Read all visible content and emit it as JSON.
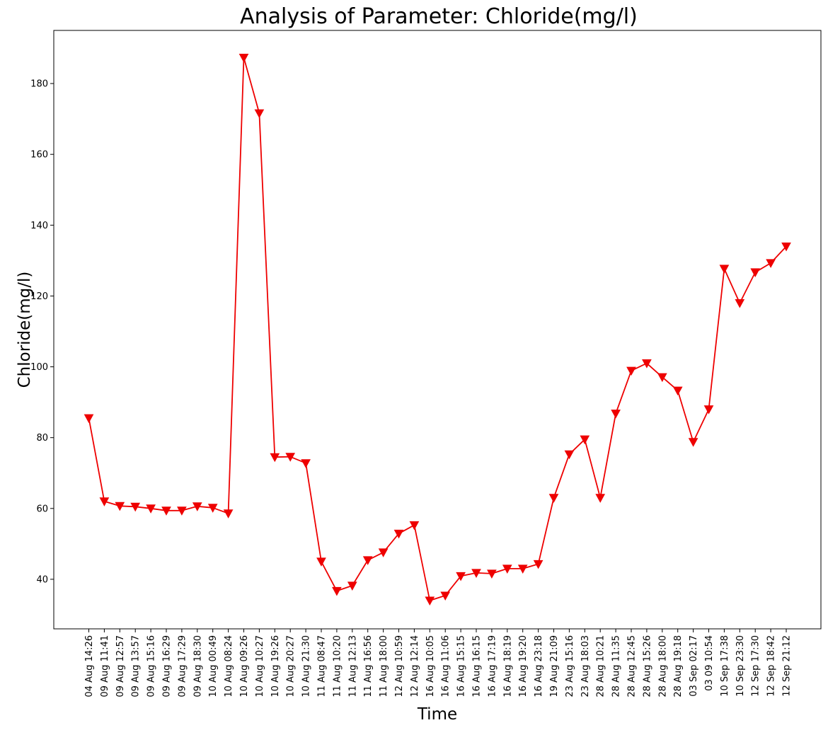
{
  "chart_data": {
    "type": "line",
    "title": "Analysis of Parameter: Chloride(mg/l)",
    "xlabel": "Time",
    "ylabel": "Chloride(mg/l)",
    "ylim": [
      26,
      195
    ],
    "yticks": [
      40,
      60,
      80,
      100,
      120,
      140,
      160,
      180
    ],
    "grid": false,
    "marker": "triangle-down",
    "line_color": "#ee0000",
    "categories": [
      "04 Aug 14:26",
      "09 Aug 11:41",
      "09 Aug 12:57",
      "09 Aug 13:57",
      "09 Aug 15:16",
      "09 Aug 16:29",
      "09 Aug 17:29",
      "09 Aug 18:30",
      "10 Aug 00:49",
      "10 Aug 08:24",
      "10 Aug 09:26",
      "10 Aug 10:27",
      "10 Aug 19:26",
      "10 Aug 20:27",
      "10 Aug 21:30",
      "11 Aug 08:47",
      "11 Aug 10:20",
      "11 Aug 12:13",
      "11 Aug 16:56",
      "11 Aug 18:00",
      "12 Aug 10:59",
      "12 Aug 12:14",
      "16 Aug 10:05",
      "16 Aug 11:06",
      "16 Aug 15:15",
      "16 Aug 16:15",
      "16 Aug 17:19",
      "16 Aug 18:19",
      "16 Aug 19:20",
      "16 Aug 23:18",
      "19 Aug 21:09",
      "23 Aug 15:16",
      "23 Aug 18:03",
      "28 Aug 10:21",
      "28 Aug 11:35",
      "28 Aug 12:45",
      "28 Aug 15:26",
      "28 Aug 18:00",
      "28 Aug 19:18",
      "03 Sep 02:17",
      "03 09 10:54",
      "10 Sep 17:38",
      "10 Sep 23:30",
      "12 Sep 17:30",
      "12 Sep 18:42",
      "12 Sep 21:12"
    ],
    "values": [
      85.5,
      62,
      60.7,
      60.5,
      60,
      59.4,
      59.4,
      60.6,
      60.2,
      58.6,
      187.3,
      171.6,
      74.5,
      74.6,
      72.8,
      45,
      36.7,
      38.2,
      45.4,
      47.6,
      52.9,
      55.3,
      34,
      35.4,
      40.9,
      41.8,
      41.6,
      43,
      43,
      44.3,
      63,
      75.3,
      79.5,
      63,
      86.8,
      98.9,
      101,
      97.1,
      93.3,
      78.8,
      88,
      127.7,
      118,
      126.7,
      129.3,
      134
    ]
  }
}
